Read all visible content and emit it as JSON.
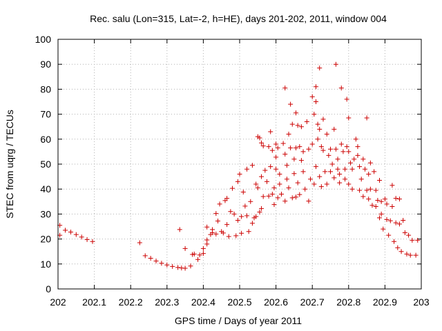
{
  "chart_data": {
    "type": "scatter",
    "title": "Rec. salu (Lon=315, Lat=-2, h=HE), days 201-202, 2011, window 004",
    "xlabel": "GPS time / Days of year 2011",
    "ylabel": "STEC from uqrg / TECUs",
    "xlim": [
      202,
      203
    ],
    "ylim": [
      0,
      100
    ],
    "xticks": [
      "202",
      "202.1",
      "202.2",
      "202.3",
      "202.4",
      "202.5",
      "202.6",
      "202.7",
      "202.8",
      "202.9",
      "203"
    ],
    "yticks": [
      "0",
      "10",
      "20",
      "30",
      "40",
      "50",
      "60",
      "70",
      "80",
      "90",
      "100"
    ],
    "grid": true,
    "marker_color": "#cc0000",
    "marker": "plus",
    "series": [
      {
        "points": [
          [
            202.005,
            21.5
          ],
          [
            202.005,
            25.5
          ],
          [
            202.02,
            23.5
          ],
          [
            202.035,
            22.8
          ],
          [
            202.05,
            21.8
          ],
          [
            202.065,
            20.8
          ],
          [
            202.08,
            19.8
          ],
          [
            202.095,
            19.0
          ],
          [
            202.225,
            18.5
          ],
          [
            202.24,
            13.3
          ],
          [
            202.255,
            12.3
          ],
          [
            202.27,
            11.2
          ],
          [
            202.285,
            10.3
          ],
          [
            202.3,
            9.6
          ],
          [
            202.315,
            9.0
          ],
          [
            202.33,
            8.6
          ],
          [
            202.34,
            8.4
          ],
          [
            202.335,
            23.8
          ],
          [
            202.35,
            8.3
          ],
          [
            202.365,
            9.2
          ],
          [
            202.37,
            13.8
          ],
          [
            202.375,
            14.0
          ],
          [
            202.385,
            11.8
          ],
          [
            202.39,
            13.6
          ],
          [
            202.35,
            16.2
          ],
          [
            202.4,
            14.2
          ],
          [
            202.4,
            16.2
          ],
          [
            202.41,
            18.0
          ],
          [
            202.41,
            19.6
          ],
          [
            202.41,
            24.8
          ],
          [
            202.42,
            21.8
          ],
          [
            202.425,
            22.5
          ],
          [
            202.425,
            23.8
          ],
          [
            202.435,
            30.2
          ],
          [
            202.435,
            22.0
          ],
          [
            202.44,
            27.2
          ],
          [
            202.445,
            34.0
          ],
          [
            202.45,
            23.0
          ],
          [
            202.455,
            22.4
          ],
          [
            202.46,
            35.4
          ],
          [
            202.465,
            36.3
          ],
          [
            202.465,
            25.8
          ],
          [
            202.47,
            21.0
          ],
          [
            202.475,
            31.0
          ],
          [
            202.48,
            40.3
          ],
          [
            202.485,
            30.0
          ],
          [
            202.49,
            21.3
          ],
          [
            202.495,
            43.0
          ],
          [
            202.495,
            27.5
          ],
          [
            202.5,
            46.0
          ],
          [
            202.505,
            29.0
          ],
          [
            202.505,
            22.3
          ],
          [
            202.51,
            38.8
          ],
          [
            202.515,
            33.2
          ],
          [
            202.52,
            48.0
          ],
          [
            202.52,
            29.3
          ],
          [
            202.525,
            23.0
          ],
          [
            202.53,
            35.0
          ],
          [
            202.535,
            49.5
          ],
          [
            202.535,
            26.3
          ],
          [
            202.54,
            28.5
          ],
          [
            202.545,
            29.0
          ],
          [
            202.545,
            42.0
          ],
          [
            202.55,
            61.0
          ],
          [
            202.55,
            40.5
          ],
          [
            202.555,
            60.5
          ],
          [
            202.555,
            30.8
          ],
          [
            202.56,
            58.5
          ],
          [
            202.56,
            45.0
          ],
          [
            202.56,
            32.2
          ],
          [
            202.565,
            57.3
          ],
          [
            202.565,
            37.0
          ],
          [
            202.57,
            47.5
          ],
          [
            202.575,
            43.0
          ],
          [
            202.58,
            57.0
          ],
          [
            202.58,
            37.2
          ],
          [
            202.585,
            63.0
          ],
          [
            202.585,
            49.0
          ],
          [
            202.59,
            55.5
          ],
          [
            202.59,
            38.0
          ],
          [
            202.595,
            40.5
          ],
          [
            202.595,
            33.8
          ],
          [
            202.6,
            58.0
          ],
          [
            202.6,
            52.8
          ],
          [
            202.6,
            48.0
          ],
          [
            202.605,
            56.5
          ],
          [
            202.605,
            36.5
          ],
          [
            202.61,
            46.0
          ],
          [
            202.61,
            42.0
          ],
          [
            202.615,
            38.0
          ],
          [
            202.62,
            58.3
          ],
          [
            202.625,
            80.5
          ],
          [
            202.625,
            54.0
          ],
          [
            202.625,
            35.2
          ],
          [
            202.63,
            49.5
          ],
          [
            202.63,
            44.0
          ],
          [
            202.635,
            40.5
          ],
          [
            202.635,
            62.0
          ],
          [
            202.64,
            74.0
          ],
          [
            202.64,
            56.5
          ],
          [
            202.645,
            66.0
          ],
          [
            202.645,
            36.5
          ],
          [
            202.65,
            52.0
          ],
          [
            202.65,
            46.2
          ],
          [
            202.655,
            70.5
          ],
          [
            202.655,
            56.5
          ],
          [
            202.655,
            36.8
          ],
          [
            202.66,
            65.5
          ],
          [
            202.66,
            42.5
          ],
          [
            202.665,
            57.0
          ],
          [
            202.665,
            37.8
          ],
          [
            202.67,
            65.0
          ],
          [
            202.67,
            51.5
          ],
          [
            202.675,
            55.0
          ],
          [
            202.675,
            47.0
          ],
          [
            202.68,
            40.0
          ],
          [
            202.685,
            67.0
          ],
          [
            202.69,
            56.0
          ],
          [
            202.69,
            35.2
          ],
          [
            202.695,
            44.0
          ],
          [
            202.7,
            77.0
          ],
          [
            202.7,
            58.0
          ],
          [
            202.705,
            70.0
          ],
          [
            202.705,
            42.0
          ],
          [
            202.71,
            81.0
          ],
          [
            202.71,
            75.0
          ],
          [
            202.71,
            49.0
          ],
          [
            202.715,
            66.0
          ],
          [
            202.715,
            60.0
          ],
          [
            202.72,
            88.5
          ],
          [
            202.72,
            64.0
          ],
          [
            202.72,
            45.0
          ],
          [
            202.725,
            57.0
          ],
          [
            202.725,
            41.0
          ],
          [
            202.73,
            68.0
          ],
          [
            202.73,
            55.5
          ],
          [
            202.735,
            47.0
          ],
          [
            202.74,
            62.0
          ],
          [
            202.74,
            42.0
          ],
          [
            202.745,
            53.5
          ],
          [
            202.75,
            56.0
          ],
          [
            202.75,
            47.0
          ],
          [
            202.755,
            50.0
          ],
          [
            202.76,
            64.0
          ],
          [
            202.76,
            44.5
          ],
          [
            202.765,
            90.0
          ],
          [
            202.765,
            56.0
          ],
          [
            202.77,
            52.0
          ],
          [
            202.77,
            48.0
          ],
          [
            202.775,
            46.0
          ],
          [
            202.775,
            42.5
          ],
          [
            202.78,
            80.5
          ],
          [
            202.78,
            58.0
          ],
          [
            202.785,
            55.0
          ],
          [
            202.79,
            48.0
          ],
          [
            202.79,
            44.0
          ],
          [
            202.795,
            76.0
          ],
          [
            202.795,
            57.0
          ],
          [
            202.8,
            68.5
          ],
          [
            202.8,
            55.0
          ],
          [
            202.8,
            42.0
          ],
          [
            202.805,
            50.5
          ],
          [
            202.81,
            48.0
          ],
          [
            202.81,
            40.0
          ],
          [
            202.815,
            52.0
          ],
          [
            202.82,
            60.0
          ],
          [
            202.825,
            57.0
          ],
          [
            202.825,
            53.5
          ],
          [
            202.83,
            49.0
          ],
          [
            202.83,
            39.5
          ],
          [
            202.835,
            44.0
          ],
          [
            202.84,
            52.0
          ],
          [
            202.84,
            37.0
          ],
          [
            202.845,
            48.0
          ],
          [
            202.85,
            68.5
          ],
          [
            202.85,
            39.5
          ],
          [
            202.855,
            46.0
          ],
          [
            202.855,
            36.0
          ],
          [
            202.86,
            50.5
          ],
          [
            202.86,
            40.0
          ],
          [
            202.865,
            33.5
          ],
          [
            202.87,
            47.0
          ],
          [
            202.875,
            39.5
          ],
          [
            202.875,
            33.0
          ],
          [
            202.88,
            35.5
          ],
          [
            202.885,
            43.5
          ],
          [
            202.885,
            28.5
          ],
          [
            202.89,
            30.0
          ],
          [
            202.89,
            35.0
          ],
          [
            202.895,
            24.0
          ],
          [
            202.9,
            36.0
          ],
          [
            202.905,
            27.8
          ],
          [
            202.905,
            34.0
          ],
          [
            202.91,
            21.5
          ],
          [
            202.915,
            27.3
          ],
          [
            202.92,
            41.5
          ],
          [
            202.92,
            33.0
          ],
          [
            202.925,
            19.0
          ],
          [
            202.93,
            36.3
          ],
          [
            202.93,
            26.5
          ],
          [
            202.935,
            16.5
          ],
          [
            202.94,
            36.0
          ],
          [
            202.94,
            26.0
          ],
          [
            202.945,
            15.0
          ],
          [
            202.95,
            27.5
          ],
          [
            202.955,
            22.5
          ],
          [
            202.96,
            14.0
          ],
          [
            202.965,
            21.5
          ],
          [
            202.97,
            13.5
          ],
          [
            202.975,
            19.5
          ],
          [
            202.985,
            13.5
          ],
          [
            202.99,
            19.5
          ]
        ]
      }
    ]
  }
}
